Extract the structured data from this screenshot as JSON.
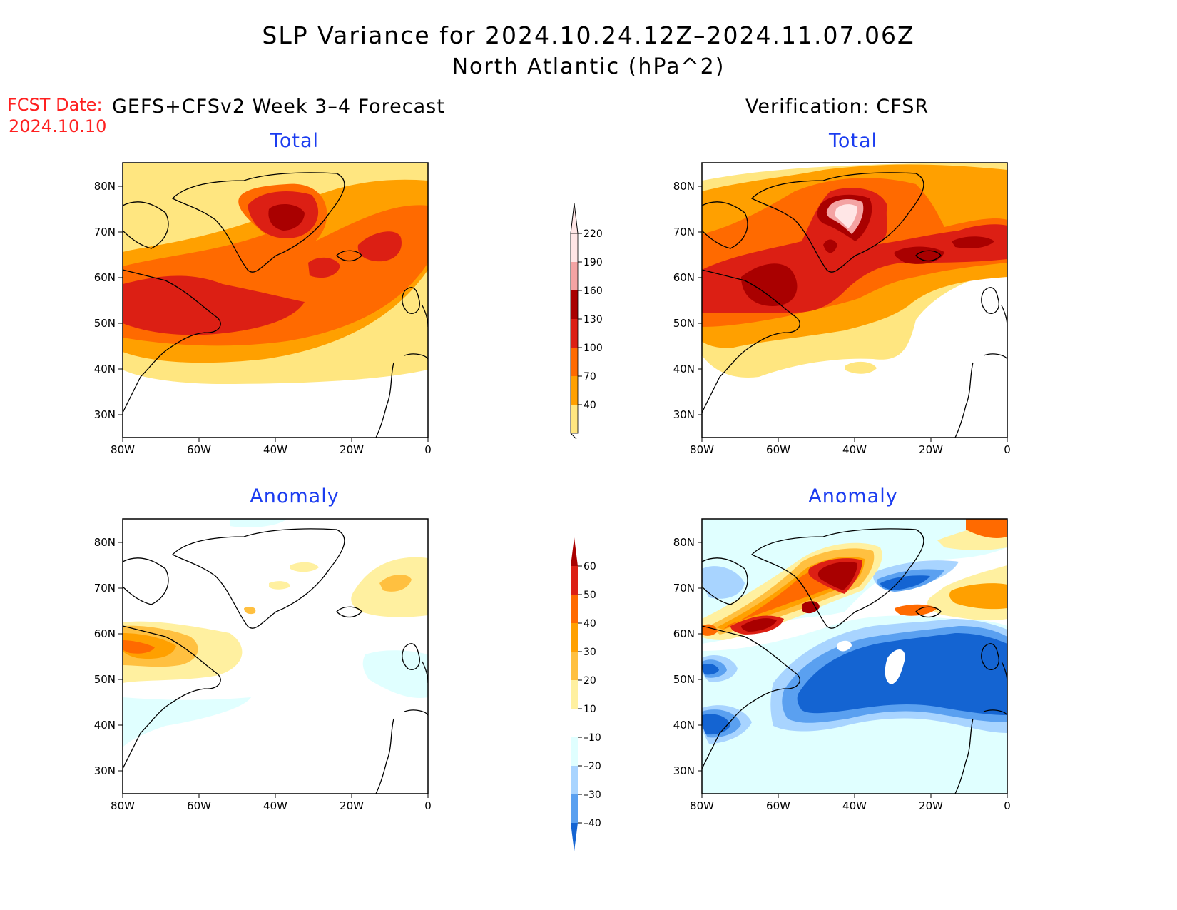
{
  "figure": {
    "title_line1": "SLP Variance for 2024.10.24.12Z–2024.11.07.06Z",
    "title_line2": "North Atlantic (hPa^2)",
    "fcst_label": "FCST Date:",
    "fcst_date": "2024.10.10",
    "left_header": "GEFS+CFSv2 Week 3–4 Forecast",
    "right_header": "Verification: CFSR"
  },
  "panels": [
    {
      "id": "fcst-total",
      "subtitle": "Total",
      "field": "forecast-total"
    },
    {
      "id": "verif-total",
      "subtitle": "Total",
      "field": "verification-total"
    },
    {
      "id": "fcst-anom",
      "subtitle": "Anomaly",
      "field": "forecast-anomaly"
    },
    {
      "id": "verif-anom",
      "subtitle": "Anomaly",
      "field": "verification-anomaly"
    }
  ],
  "axes": {
    "lon_labels": [
      "80W",
      "60W",
      "40W",
      "20W",
      "0"
    ],
    "lat_labels": [
      "80N",
      "70N",
      "60N",
      "50N",
      "40N",
      "30N"
    ],
    "lon_range": [
      -80,
      0
    ],
    "lat_range": [
      25,
      85
    ]
  },
  "colorbars": {
    "total": {
      "labels": [
        "220",
        "190",
        "160",
        "130",
        "100",
        "70",
        "40"
      ],
      "colors": [
        "#ffe6e6",
        "#f4a3a3",
        "#a90000",
        "#dc1f14",
        "#ff6a00",
        "#ffa000",
        "#ffe680"
      ]
    },
    "anomaly": {
      "labels": [
        "60",
        "50",
        "40",
        "30",
        "20",
        "10",
        "–10",
        "–20",
        "–30",
        "–40"
      ],
      "colors": [
        "#a90000",
        "#dc1f14",
        "#ff6a00",
        "#ffa000",
        "#ffc040",
        "#fff0a0",
        "#ffffff",
        "#e0ffff",
        "#a8d4ff",
        "#5aa0f0",
        "#1464d2"
      ]
    }
  }
}
